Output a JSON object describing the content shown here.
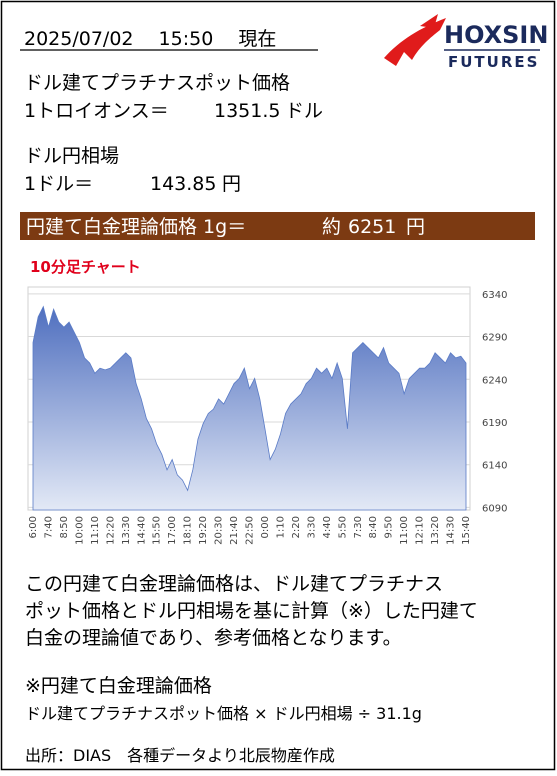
{
  "header": {
    "date_time": "2025/07/02　 15:50　 現在"
  },
  "logo": {
    "name": "HOXSIN",
    "sub": "FUTURES"
  },
  "platinum_spot": {
    "title": "ドル建てプラチナスポット価格",
    "label": "1トロイオンス＝",
    "value": 1351.5,
    "unit": "ドル"
  },
  "usd_jpy": {
    "title": "ドル円相場",
    "label": "1ドル＝",
    "value": 143.85,
    "unit": "円"
  },
  "theoretical": {
    "label": "円建て白金理論価格 1g＝",
    "prefix": "約",
    "value": 6251,
    "unit": "円"
  },
  "chart_data": {
    "type": "area",
    "title": "10分足チャート",
    "categories": [
      "6:00",
      null,
      null,
      "7:40",
      null,
      null,
      "8:50",
      null,
      null,
      "10:00",
      null,
      null,
      "11:10",
      null,
      null,
      "12:20",
      null,
      null,
      "13:30",
      null,
      null,
      "14:40",
      null,
      null,
      "15:50",
      null,
      null,
      "17:00",
      null,
      null,
      "18:10",
      null,
      null,
      "19:20",
      null,
      null,
      "20:30",
      null,
      null,
      "21:40",
      null,
      null,
      "22:50",
      null,
      null,
      "0:00",
      null,
      null,
      "1:10",
      null,
      null,
      "2:20",
      null,
      null,
      "3:30",
      null,
      null,
      "4:40",
      null,
      null,
      "5:50",
      null,
      null,
      "7:30",
      null,
      null,
      "8:40",
      null,
      null,
      "9:50",
      null,
      null,
      "11:00",
      null,
      null,
      "12:10",
      null,
      null,
      "13:20",
      null,
      null,
      "14:30",
      null,
      null,
      "15:40"
    ],
    "values": [
      6283,
      6313,
      6325,
      6301,
      6322,
      6307,
      6301,
      6307,
      6295,
      6283,
      6265,
      6259,
      6247,
      6253,
      6251,
      6253,
      6259,
      6265,
      6271,
      6265,
      6235,
      6217,
      6194,
      6182,
      6164,
      6152,
      6134,
      6146,
      6128,
      6122,
      6110,
      6134,
      6170,
      6188,
      6200,
      6205,
      6217,
      6211,
      6223,
      6235,
      6241,
      6253,
      6229,
      6241,
      6217,
      6182,
      6146,
      6158,
      6176,
      6200,
      6211,
      6217,
      6223,
      6235,
      6241,
      6253,
      6247,
      6253,
      6241,
      6259,
      6241,
      6182,
      6271,
      6277,
      6283,
      6277,
      6271,
      6265,
      6277,
      6259,
      6253,
      6247,
      6223,
      6241,
      6247,
      6253,
      6253,
      6259,
      6271,
      6265,
      6259,
      6271,
      6265,
      6267,
      6259
    ],
    "color": "#5a7bc6",
    "ylim": [
      6087,
      6348
    ],
    "yticks": [
      6090,
      6140,
      6190,
      6240,
      6290,
      6340
    ],
    "grid": true
  },
  "note": {
    "lines": [
      "この円建て白金理論価格は、ドル建てプラチナス",
      "ポット価格とドル円相場を基に計算（※）した円建て",
      "白金の理論値であり、参考価格となります。"
    ]
  },
  "formula": {
    "title": "※円建て白金理論価格",
    "text": "ドル建てプラチナスポット価格 × ドル円相場 ÷ 31.1g"
  },
  "source": "出所：DIAS　各種データより北辰物産作成"
}
